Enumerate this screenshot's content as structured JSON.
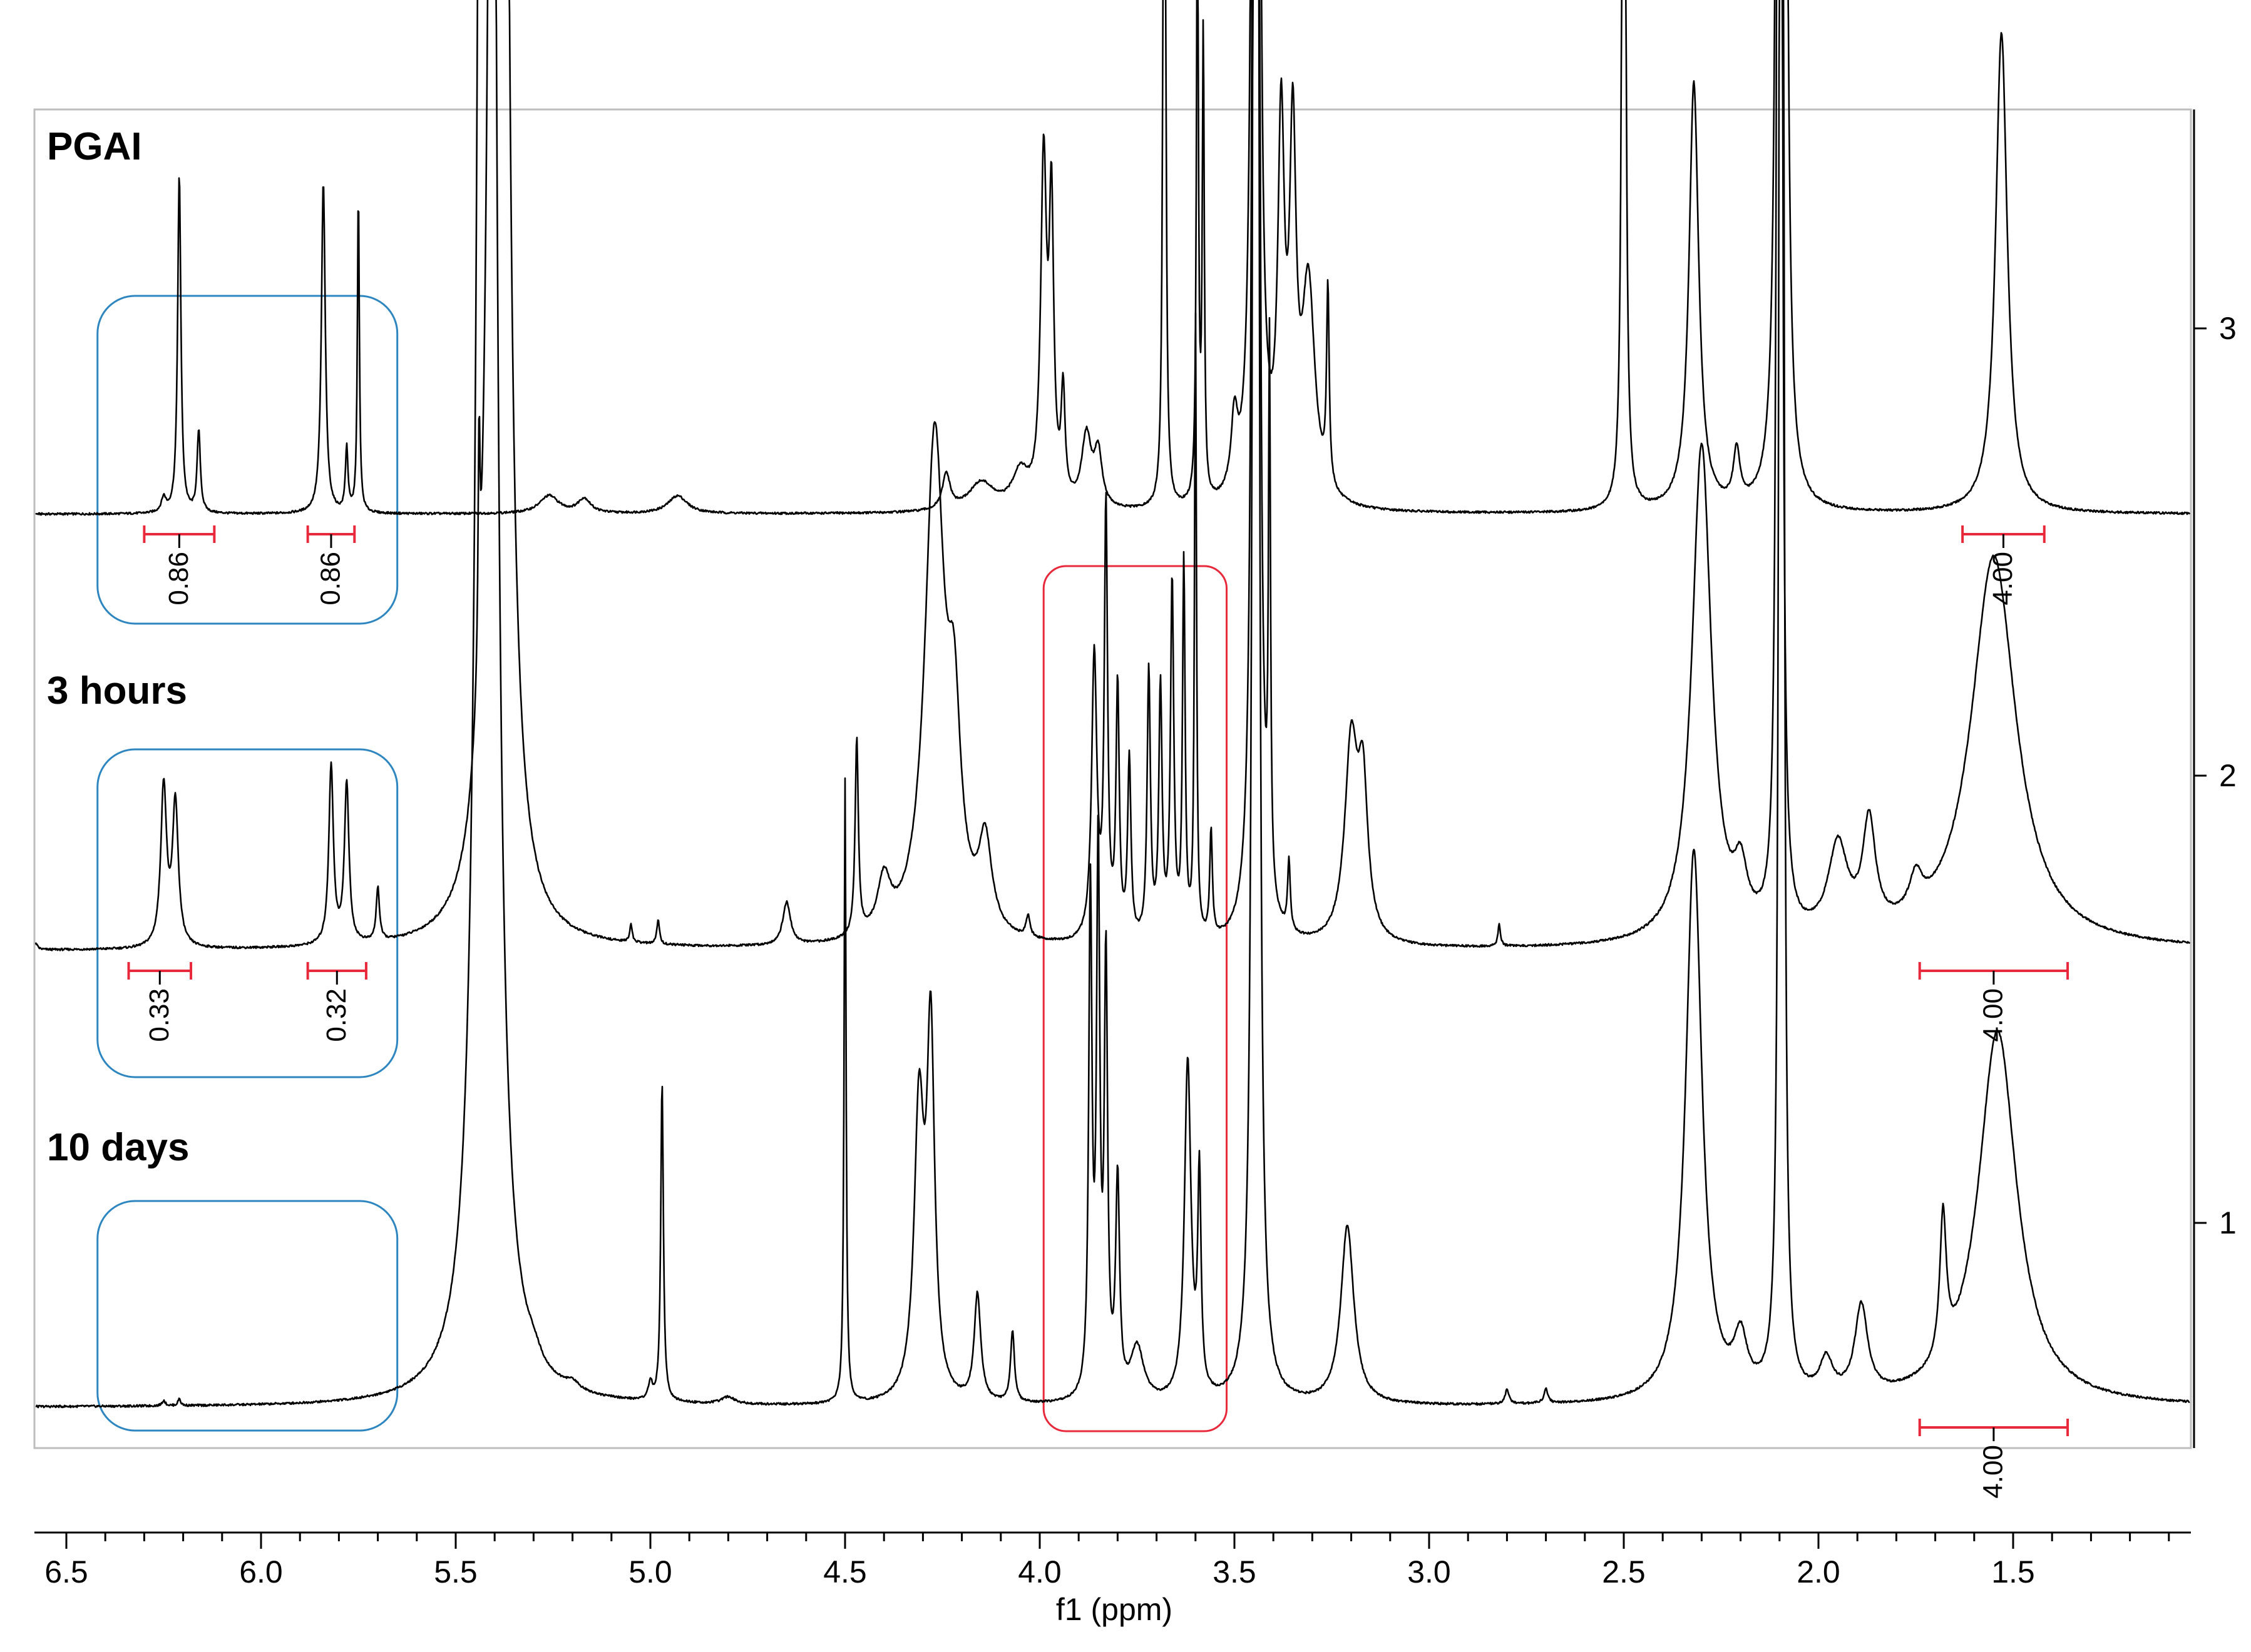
{
  "chart_data": {
    "type": "line",
    "xlabel": "f1 (ppm)",
    "x_range": [
      6.6,
      1.1
    ],
    "x_reversed": true,
    "x_ticks": [
      "6.5",
      "6.0",
      "5.5",
      "5.0",
      "4.5",
      "4.0",
      "3.5",
      "3.0",
      "2.5",
      "2.0",
      "1.5"
    ],
    "x_tick_values": [
      6.5,
      6.0,
      5.5,
      5.0,
      4.5,
      4.0,
      3.5,
      3.0,
      2.5,
      2.0,
      1.5
    ],
    "right_axis_ticks": [
      "3",
      "2",
      "1"
    ],
    "grid": false,
    "series": [
      {
        "name": "PGAI",
        "stack_index": 3,
        "peaks": [
          {
            "ppm": 6.25,
            "h": 0.04,
            "w": 0.007
          },
          {
            "ppm": 6.21,
            "h": 0.95,
            "w": 0.005
          },
          {
            "ppm": 6.16,
            "h": 0.23,
            "w": 0.005
          },
          {
            "ppm": 5.84,
            "h": 0.93,
            "w": 0.006
          },
          {
            "ppm": 5.78,
            "h": 0.18,
            "w": 0.004
          },
          {
            "ppm": 5.75,
            "h": 0.9,
            "w": 0.003
          },
          {
            "ppm": 5.26,
            "h": 0.05,
            "w": 0.03
          },
          {
            "ppm": 5.17,
            "h": 0.04,
            "w": 0.02
          },
          {
            "ppm": 4.93,
            "h": 0.05,
            "w": 0.03
          },
          {
            "ppm": 4.24,
            "h": 0.1,
            "w": 0.012
          },
          {
            "ppm": 4.15,
            "h": 0.08,
            "w": 0.04
          },
          {
            "ppm": 4.05,
            "h": 0.1,
            "w": 0.025
          },
          {
            "ppm": 3.99,
            "h": 0.95,
            "w": 0.009
          },
          {
            "ppm": 3.97,
            "h": 0.8,
            "w": 0.007
          },
          {
            "ppm": 3.94,
            "h": 0.3,
            "w": 0.006
          },
          {
            "ppm": 3.88,
            "h": 0.2,
            "w": 0.015
          },
          {
            "ppm": 3.85,
            "h": 0.15,
            "w": 0.012
          },
          {
            "ppm": 3.68,
            "h": 3.8,
            "w": 0.003
          },
          {
            "ppm": 3.595,
            "h": 1.75,
            "w": 0.003
          },
          {
            "ppm": 3.58,
            "h": 1.3,
            "w": 0.003
          },
          {
            "ppm": 3.5,
            "h": 0.2,
            "w": 0.01
          },
          {
            "ppm": 3.445,
            "h": 20.0,
            "w": 0.004
          },
          {
            "ppm": 3.38,
            "h": 1.0,
            "w": 0.01
          },
          {
            "ppm": 3.35,
            "h": 0.95,
            "w": 0.01
          },
          {
            "ppm": 3.31,
            "h": 0.6,
            "w": 0.02
          },
          {
            "ppm": 3.26,
            "h": 0.55,
            "w": 0.004
          },
          {
            "ppm": 2.5,
            "h": 4.5,
            "w": 0.004
          },
          {
            "ppm": 2.32,
            "h": 1.2,
            "w": 0.015
          },
          {
            "ppm": 2.21,
            "h": 0.15,
            "w": 0.01
          },
          {
            "ppm": 2.09,
            "h": 20.0,
            "w": 0.003
          },
          {
            "ppm": 2.1,
            "h": 20.0,
            "w": 0.003
          },
          {
            "ppm": 1.53,
            "h": 1.35,
            "w": 0.018
          }
        ],
        "integrals": [
          {
            "ppm_from": 6.3,
            "ppm_to": 6.12,
            "value": "0.86"
          },
          {
            "ppm_from": 5.88,
            "ppm_to": 5.76,
            "value": "0.86"
          },
          {
            "ppm_from": 1.63,
            "ppm_to": 1.42,
            "value": "4.00"
          }
        ]
      },
      {
        "name": "3 hours",
        "stack_index": 2,
        "peaks": [
          {
            "ppm": 6.58,
            "h": 0.02,
            "w": 0.006
          },
          {
            "ppm": 6.25,
            "h": 0.45,
            "w": 0.009
          },
          {
            "ppm": 6.22,
            "h": 0.4,
            "w": 0.009
          },
          {
            "ppm": 5.82,
            "h": 0.5,
            "w": 0.007
          },
          {
            "ppm": 5.78,
            "h": 0.45,
            "w": 0.007
          },
          {
            "ppm": 5.7,
            "h": 0.15,
            "w": 0.005
          },
          {
            "ppm": 5.44,
            "h": 0.6,
            "w": 0.003
          },
          {
            "ppm": 5.39,
            "h": 20.0,
            "w": 0.011
          },
          {
            "ppm": 5.05,
            "h": 0.05,
            "w": 0.004
          },
          {
            "ppm": 4.98,
            "h": 0.07,
            "w": 0.004
          },
          {
            "ppm": 4.65,
            "h": 0.12,
            "w": 0.012
          },
          {
            "ppm": 4.47,
            "h": 0.55,
            "w": 0.005
          },
          {
            "ppm": 4.4,
            "h": 0.15,
            "w": 0.02
          },
          {
            "ppm": 4.27,
            "h": 1.4,
            "w": 0.03
          },
          {
            "ppm": 4.22,
            "h": 0.5,
            "w": 0.02
          },
          {
            "ppm": 4.14,
            "h": 0.25,
            "w": 0.02
          },
          {
            "ppm": 4.03,
            "h": 0.06,
            "w": 0.006
          },
          {
            "ppm": 3.86,
            "h": 0.8,
            "w": 0.008
          },
          {
            "ppm": 3.83,
            "h": 1.2,
            "w": 0.005
          },
          {
            "ppm": 3.8,
            "h": 0.7,
            "w": 0.005
          },
          {
            "ppm": 3.77,
            "h": 0.5,
            "w": 0.005
          },
          {
            "ppm": 3.72,
            "h": 0.75,
            "w": 0.005
          },
          {
            "ppm": 3.69,
            "h": 0.7,
            "w": 0.005
          },
          {
            "ppm": 3.66,
            "h": 1.0,
            "w": 0.005
          },
          {
            "ppm": 3.63,
            "h": 1.05,
            "w": 0.004
          },
          {
            "ppm": 3.6,
            "h": 1.75,
            "w": 0.003
          },
          {
            "ppm": 3.56,
            "h": 0.3,
            "w": 0.004
          },
          {
            "ppm": 3.445,
            "h": 20.0,
            "w": 0.004
          },
          {
            "ppm": 3.41,
            "h": 1.5,
            "w": 0.003
          },
          {
            "ppm": 3.36,
            "h": 0.2,
            "w": 0.004
          },
          {
            "ppm": 3.2,
            "h": 0.55,
            "w": 0.02
          },
          {
            "ppm": 3.17,
            "h": 0.4,
            "w": 0.015
          },
          {
            "ppm": 2.82,
            "h": 0.06,
            "w": 0.004
          },
          {
            "ppm": 2.3,
            "h": 1.4,
            "w": 0.03
          },
          {
            "ppm": 2.2,
            "h": 0.15,
            "w": 0.02
          },
          {
            "ppm": 2.1,
            "h": 20.0,
            "w": 0.003
          },
          {
            "ppm": 1.95,
            "h": 0.25,
            "w": 0.03
          },
          {
            "ppm": 1.87,
            "h": 0.3,
            "w": 0.02
          },
          {
            "ppm": 1.75,
            "h": 0.1,
            "w": 0.02
          },
          {
            "ppm": 1.55,
            "h": 1.1,
            "w": 0.07
          }
        ],
        "integrals": [
          {
            "ppm_from": 6.34,
            "ppm_to": 6.18,
            "value": "0.33"
          },
          {
            "ppm_from": 5.88,
            "ppm_to": 5.73,
            "value": "0.32"
          },
          {
            "ppm_from": 1.74,
            "ppm_to": 1.36,
            "value": "4.00"
          }
        ]
      },
      {
        "name": "10 days",
        "stack_index": 1,
        "peaks": [
          {
            "ppm": 6.25,
            "h": 0.015,
            "w": 0.005
          },
          {
            "ppm": 6.21,
            "h": 0.02,
            "w": 0.004
          },
          {
            "ppm": 5.42,
            "h": 20.0,
            "w": 0.012
          },
          {
            "ppm": 5.3,
            "h": 0.03,
            "w": 0.02
          },
          {
            "ppm": 5.2,
            "h": 0.02,
            "w": 0.02
          },
          {
            "ppm": 5.0,
            "h": 0.05,
            "w": 0.006
          },
          {
            "ppm": 4.97,
            "h": 0.9,
            "w": 0.004
          },
          {
            "ppm": 4.8,
            "h": 0.02,
            "w": 0.02
          },
          {
            "ppm": 4.5,
            "h": 1.75,
            "w": 0.003
          },
          {
            "ppm": 4.31,
            "h": 0.8,
            "w": 0.015
          },
          {
            "ppm": 4.28,
            "h": 1.0,
            "w": 0.012
          },
          {
            "ppm": 4.16,
            "h": 0.3,
            "w": 0.01
          },
          {
            "ppm": 4.07,
            "h": 0.2,
            "w": 0.006
          },
          {
            "ppm": 3.87,
            "h": 1.4,
            "w": 0.005
          },
          {
            "ppm": 3.85,
            "h": 1.5,
            "w": 0.005
          },
          {
            "ppm": 3.83,
            "h": 1.2,
            "w": 0.005
          },
          {
            "ppm": 3.8,
            "h": 0.6,
            "w": 0.006
          },
          {
            "ppm": 3.75,
            "h": 0.15,
            "w": 0.02
          },
          {
            "ppm": 3.62,
            "h": 0.95,
            "w": 0.01
          },
          {
            "ppm": 3.59,
            "h": 0.6,
            "w": 0.005
          },
          {
            "ppm": 3.445,
            "h": 20.0,
            "w": 0.004
          },
          {
            "ppm": 3.21,
            "h": 0.5,
            "w": 0.02
          },
          {
            "ppm": 2.8,
            "h": 0.04,
            "w": 0.006
          },
          {
            "ppm": 2.7,
            "h": 0.04,
            "w": 0.006
          },
          {
            "ppm": 2.32,
            "h": 1.55,
            "w": 0.025
          },
          {
            "ppm": 2.2,
            "h": 0.15,
            "w": 0.02
          },
          {
            "ppm": 2.095,
            "h": 20.0,
            "w": 0.003
          },
          {
            "ppm": 1.98,
            "h": 0.1,
            "w": 0.02
          },
          {
            "ppm": 1.89,
            "h": 0.25,
            "w": 0.02
          },
          {
            "ppm": 1.68,
            "h": 0.4,
            "w": 0.01
          },
          {
            "ppm": 1.54,
            "h": 1.05,
            "w": 0.06
          }
        ],
        "integrals": [
          {
            "ppm_from": 1.74,
            "ppm_to": 1.36,
            "value": "4.00"
          }
        ]
      }
    ],
    "annotations": [
      {
        "shape": "rounded-rect",
        "color": "#2e86c1",
        "ppm_from": 6.42,
        "ppm_to": 5.65,
        "series": "PGAI"
      },
      {
        "shape": "rounded-rect",
        "color": "#2e86c1",
        "ppm_from": 6.42,
        "ppm_to": 5.65,
        "series": "3 hours"
      },
      {
        "shape": "rounded-rect",
        "color": "#2e86c1",
        "ppm_from": 6.42,
        "ppm_to": 5.65,
        "series": "10 days"
      },
      {
        "shape": "rounded-rect",
        "color": "#e8283b",
        "ppm_from": 3.99,
        "ppm_to": 3.52,
        "series": "3 hours to 10 days"
      }
    ],
    "colors": {
      "spectrum": "#000000",
      "integral": "#e8283b",
      "highlight_blue": "#2e86c1",
      "highlight_red": "#e8283b",
      "frame": "#bdbdbd"
    }
  }
}
